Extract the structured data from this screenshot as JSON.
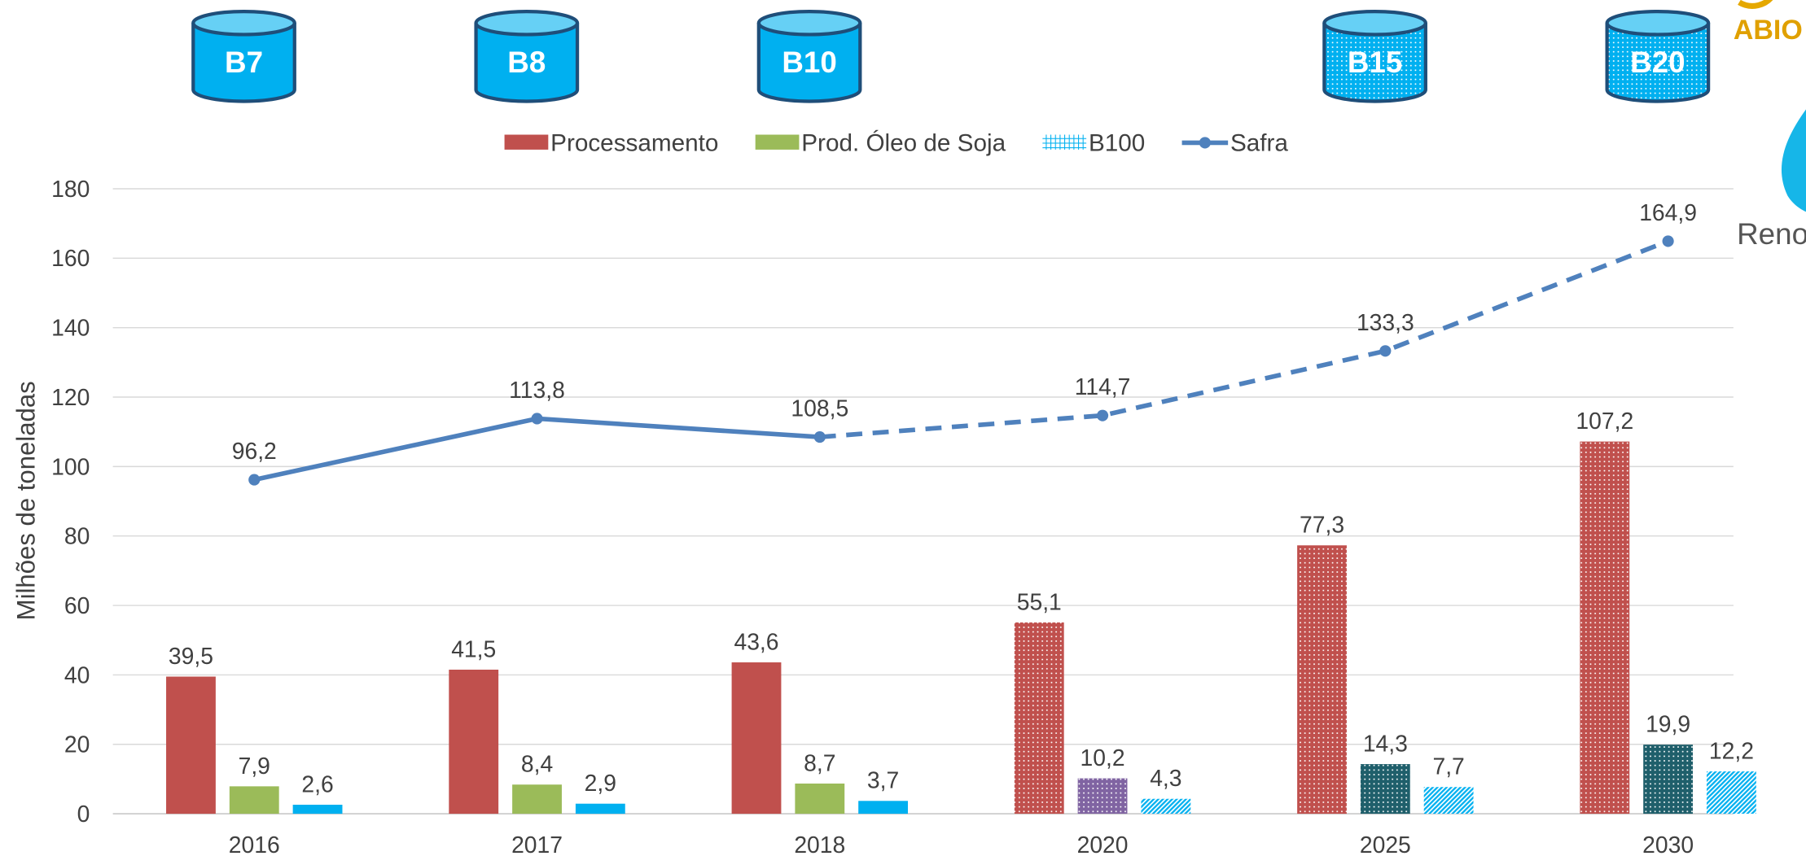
{
  "chart_data": {
    "type": "bar_line",
    "y_axis_label": "Milhões de toneladas",
    "categories": [
      "2016",
      "2017",
      "2018",
      "2020",
      "2025",
      "2030"
    ],
    "ylim": [
      0,
      180
    ],
    "yticks": [
      0,
      20,
      40,
      60,
      80,
      100,
      120,
      140,
      160,
      180
    ],
    "grid": true,
    "patterned_from": "2020",
    "series": [
      {
        "name": "Processamento",
        "type": "bar",
        "texture": "dots",
        "colors": [
          "#c0504d",
          "#c0504d",
          "#c0504d",
          "#c0504d",
          "#c0504d",
          "#c0504d"
        ],
        "values": [
          39.5,
          41.5,
          43.6,
          55.1,
          77.3,
          107.2
        ],
        "value_labels": [
          "39,5",
          "41,5",
          "43,6",
          "55,1",
          "77,3",
          "107,2"
        ]
      },
      {
        "name": "Prod. Óleo de Soja",
        "type": "bar",
        "texture": "dots",
        "colors": [
          "#9bbb59",
          "#9bbb59",
          "#9bbb59",
          "#8064a2",
          "#1f5f6b",
          "#1f5f6b"
        ],
        "values": [
          7.9,
          8.4,
          8.7,
          10.2,
          14.3,
          19.9
        ],
        "value_labels": [
          "7,9",
          "8,4",
          "8,7",
          "10,2",
          "14,3",
          "19,9"
        ]
      },
      {
        "name": "B100",
        "type": "bar",
        "texture": "stripes",
        "colors": [
          "#00b0f0",
          "#00b0f0",
          "#00b0f0",
          "#00b0f0",
          "#00b0f0",
          "#00b0f0"
        ],
        "values": [
          2.6,
          2.9,
          3.7,
          4.3,
          7.7,
          12.2
        ],
        "value_labels": [
          "2,6",
          "2,9",
          "3,7",
          "4,3",
          "7,7",
          "12,2"
        ]
      },
      {
        "name": "Safra",
        "type": "line",
        "color": "#4f81bd",
        "dashed_from": "2018",
        "values": [
          96.2,
          113.8,
          108.5,
          114.7,
          133.3,
          164.9
        ],
        "value_labels": [
          "96,2",
          "113,8",
          "108,5",
          "114,7",
          "133,3",
          "164,9"
        ]
      }
    ],
    "blends": [
      {
        "label": "B7",
        "category": "2016",
        "dotted": false
      },
      {
        "label": "B8",
        "category": "2017",
        "dotted": false
      },
      {
        "label": "B10",
        "category": "2018",
        "dotted": false
      },
      {
        "label": "B15",
        "category": "2025",
        "dotted": true
      },
      {
        "label": "B20",
        "category": "2030",
        "dotted": true
      }
    ],
    "logo_texts": [
      "ABIO",
      "Reno"
    ]
  }
}
